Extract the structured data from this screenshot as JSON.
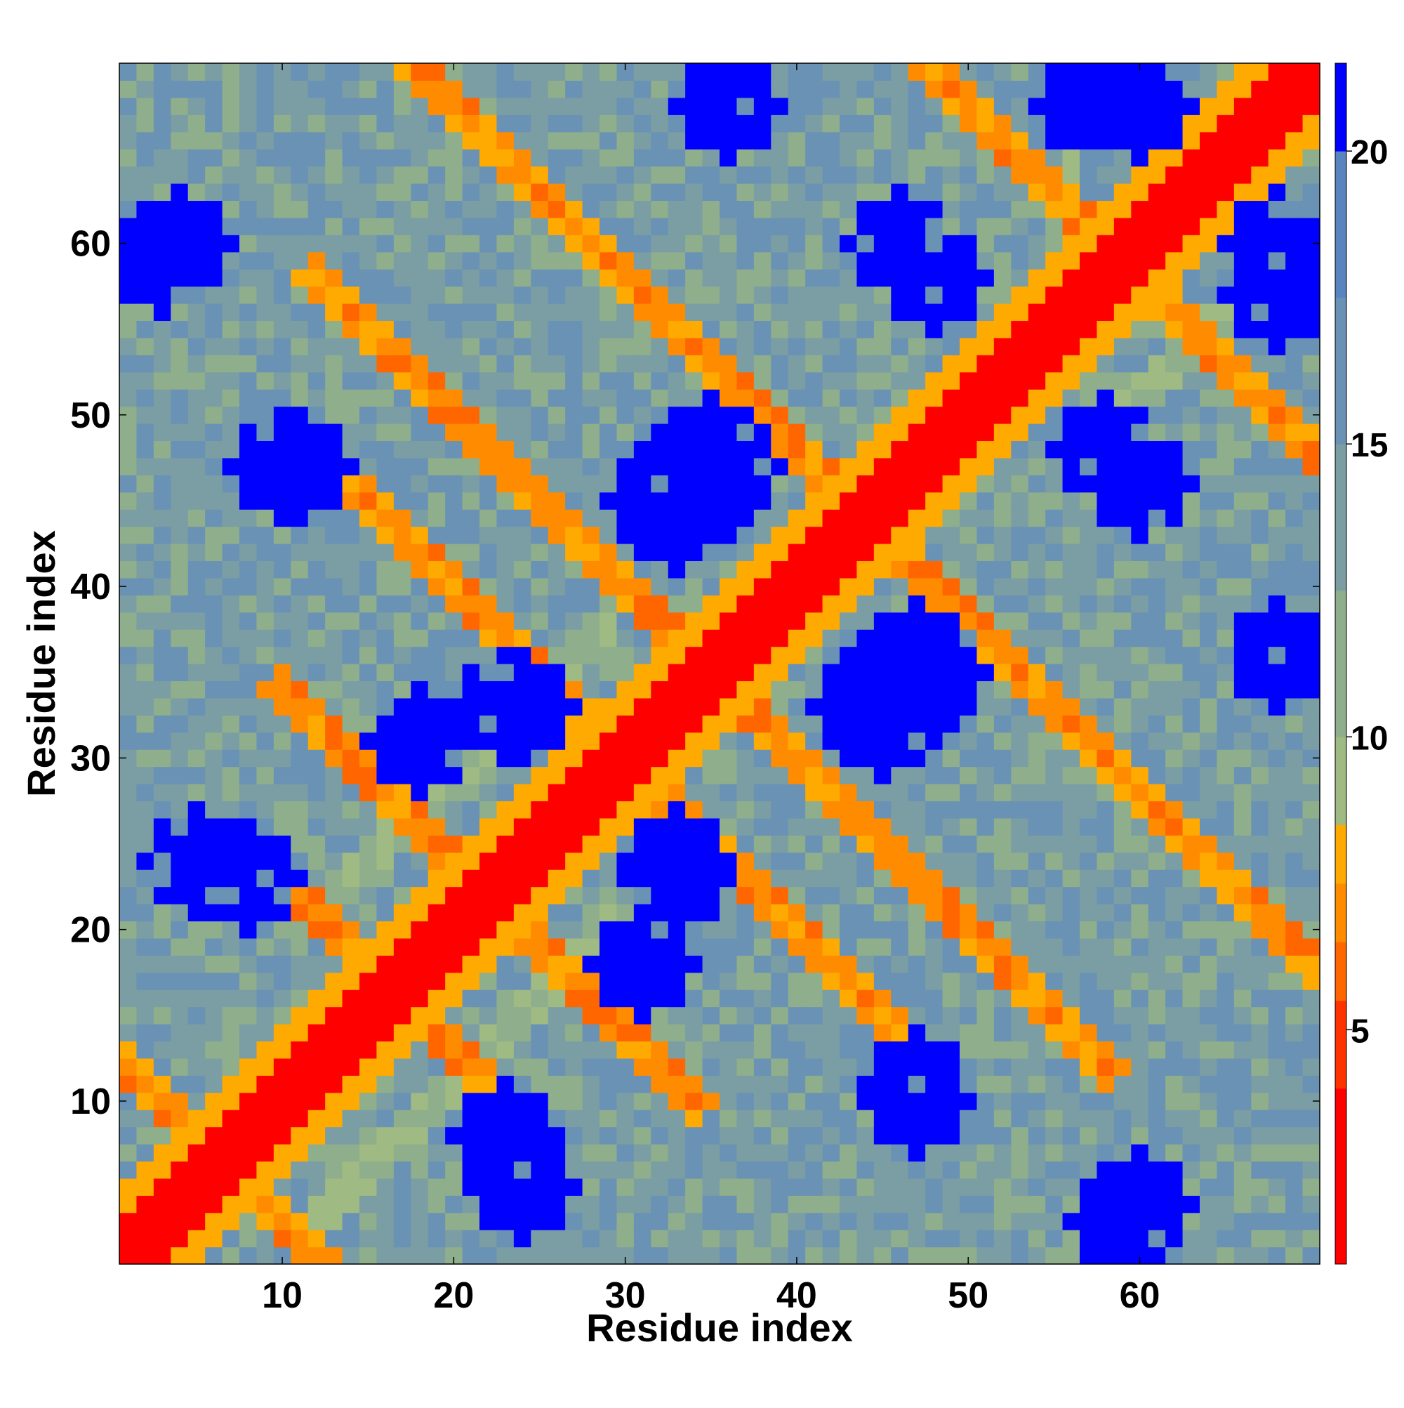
{
  "chart_data": {
    "type": "heatmap",
    "title": "",
    "xlabel": "Residue index",
    "ylabel": "Residue index",
    "n_residues": 70,
    "x_range": [
      1,
      70
    ],
    "y_range": [
      1,
      70
    ],
    "x_ticks": [
      10,
      20,
      30,
      40,
      50,
      60
    ],
    "y_ticks": [
      10,
      20,
      30,
      40,
      50,
      60
    ],
    "grid": false,
    "legend": "colorbar-right",
    "colorbar": {
      "range": [
        1,
        21.5
      ],
      "ticks": [
        5,
        10,
        15,
        20
      ],
      "colors": [
        {
          "from": 1,
          "to": 4,
          "color": "#ff0000"
        },
        {
          "from": 4,
          "to": 5.5,
          "color": "#ff3300"
        },
        {
          "from": 5.5,
          "to": 6.5,
          "color": "#ff6600"
        },
        {
          "from": 6.5,
          "to": 7.5,
          "color": "#ff8c00"
        },
        {
          "from": 7.5,
          "to": 8.5,
          "color": "#ffaa00"
        },
        {
          "from": 8.5,
          "to": 10,
          "color": "#9fba82"
        },
        {
          "from": 10,
          "to": 12.5,
          "color": "#8fae8c"
        },
        {
          "from": 12.5,
          "to": 15,
          "color": "#7a9ea4"
        },
        {
          "from": 15,
          "to": 17.5,
          "color": "#6a92b4"
        },
        {
          "from": 17.5,
          "to": 20,
          "color": "#5a84c0"
        },
        {
          "from": 20,
          "to": 21.5,
          "color": "#0000ff"
        }
      ]
    },
    "distance_function": "symmetric residue-residue distance map: 0-2 along diagonal, secondary contacts near |i-j|~4-6 and antiparallel strands near i+j~33, 44, 60, 70, 88, 118"
  }
}
